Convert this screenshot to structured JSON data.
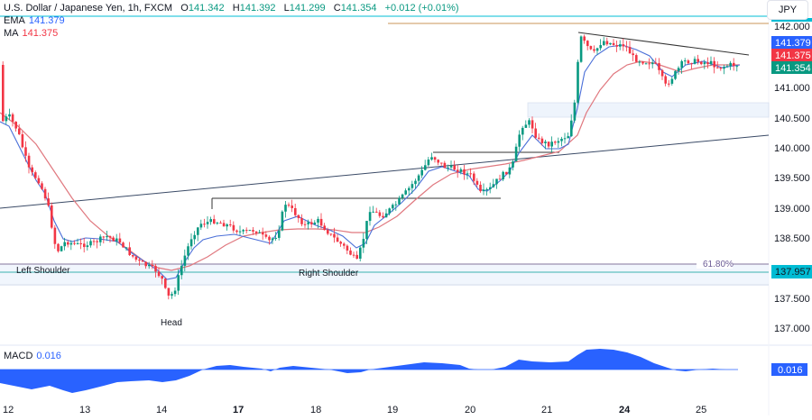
{
  "header": {
    "symbol_title": "U.S. Dollar / Japanese Yen, 1h, FXCM",
    "open_label": "O",
    "open": "141.342",
    "high_label": "H",
    "high": "141.392",
    "low_label": "L",
    "low": "141.299",
    "close_label": "C",
    "close": "141.354",
    "change": "+0.012 (+0.01%)"
  },
  "indicators": {
    "ema_label": "EMA",
    "ema_value": "141.379",
    "ma_label": "MA",
    "ma_value": "141.375",
    "macd_label": "MACD",
    "macd_value": "0.016"
  },
  "price_axis": {
    "currency": "JPY",
    "ticks": [
      "142.000",
      "141.000",
      "140.500",
      "140.000",
      "139.500",
      "139.000",
      "138.500",
      "137.500",
      "137.000"
    ],
    "badges": [
      {
        "value": "141.379",
        "color": "#2962ff"
      },
      {
        "value": "141.375",
        "color": "#f23645"
      },
      {
        "value": "141.354",
        "color": "#089981"
      },
      {
        "value": "137.957",
        "color": "#00bcd4"
      }
    ],
    "macd_badge": "0.016"
  },
  "time_axis": {
    "ticks": [
      {
        "label": "12",
        "bold": false
      },
      {
        "label": "13",
        "bold": false
      },
      {
        "label": "14",
        "bold": false
      },
      {
        "label": "17",
        "bold": true
      },
      {
        "label": "18",
        "bold": false
      },
      {
        "label": "19",
        "bold": false
      },
      {
        "label": "20",
        "bold": false
      },
      {
        "label": "21",
        "bold": false
      },
      {
        "label": "24",
        "bold": true
      },
      {
        "label": "25",
        "bold": false
      }
    ]
  },
  "annotations": {
    "left_shoulder": "Left Shoulder",
    "head": "Head",
    "right_shoulder": "Right Shoulder",
    "fib_level": "61.80%"
  },
  "colors": {
    "up": "#089981",
    "down": "#f23645",
    "ema": "#2962ff",
    "ma": "#f23645",
    "macd": "#2962ff",
    "neckline": "#00bcd4"
  },
  "chart_data": {
    "type": "candlestick",
    "title": "U.S. Dollar / Japanese Yen, 1h, FXCM",
    "xlabel": "",
    "ylabel": "JPY",
    "ylim": [
      136.8,
      142.2
    ],
    "x_ticks": [
      "12",
      "13",
      "14",
      "17",
      "18",
      "19",
      "20",
      "21",
      "24",
      "25"
    ],
    "last_ohlc": {
      "open": 141.342,
      "high": 141.392,
      "low": 141.299,
      "close": 141.354
    },
    "series": [
      {
        "name": "EMA",
        "last": 141.379
      },
      {
        "name": "MA",
        "last": 141.375
      },
      {
        "name": "MACD",
        "last": 0.016
      }
    ],
    "approx_close_path": [
      {
        "x": "12",
        "y": 140.3
      },
      {
        "x": "12.5",
        "y": 139.7
      },
      {
        "x": "13",
        "y": 138.5
      },
      {
        "x": "13.5",
        "y": 138.6
      },
      {
        "x": "14",
        "y": 137.95
      },
      {
        "x": "14.3",
        "y": 137.4
      },
      {
        "x": "14.6",
        "y": 138.6
      },
      {
        "x": "17",
        "y": 138.8
      },
      {
        "x": "17.5",
        "y": 139.1
      },
      {
        "x": "18",
        "y": 138.7
      },
      {
        "x": "18.6",
        "y": 138.1
      },
      {
        "x": "19",
        "y": 138.9
      },
      {
        "x": "19.5",
        "y": 139.8
      },
      {
        "x": "20",
        "y": 139.2
      },
      {
        "x": "20.7",
        "y": 140.5
      },
      {
        "x": "21",
        "y": 139.9
      },
      {
        "x": "21.3",
        "y": 141.9
      },
      {
        "x": "24",
        "y": 141.5
      },
      {
        "x": "24.5",
        "y": 140.8
      },
      {
        "x": "25",
        "y": 141.4
      },
      {
        "x": "25.5",
        "y": 141.35
      }
    ],
    "levels": [
      {
        "name": "61.80% fib",
        "y": 138.1
      },
      {
        "name": "neckline",
        "y": 137.957
      },
      {
        "name": "resistance",
        "y": 142.1
      }
    ],
    "annotations": [
      "Left Shoulder",
      "Head",
      "Right Shoulder",
      "61.80%"
    ]
  }
}
